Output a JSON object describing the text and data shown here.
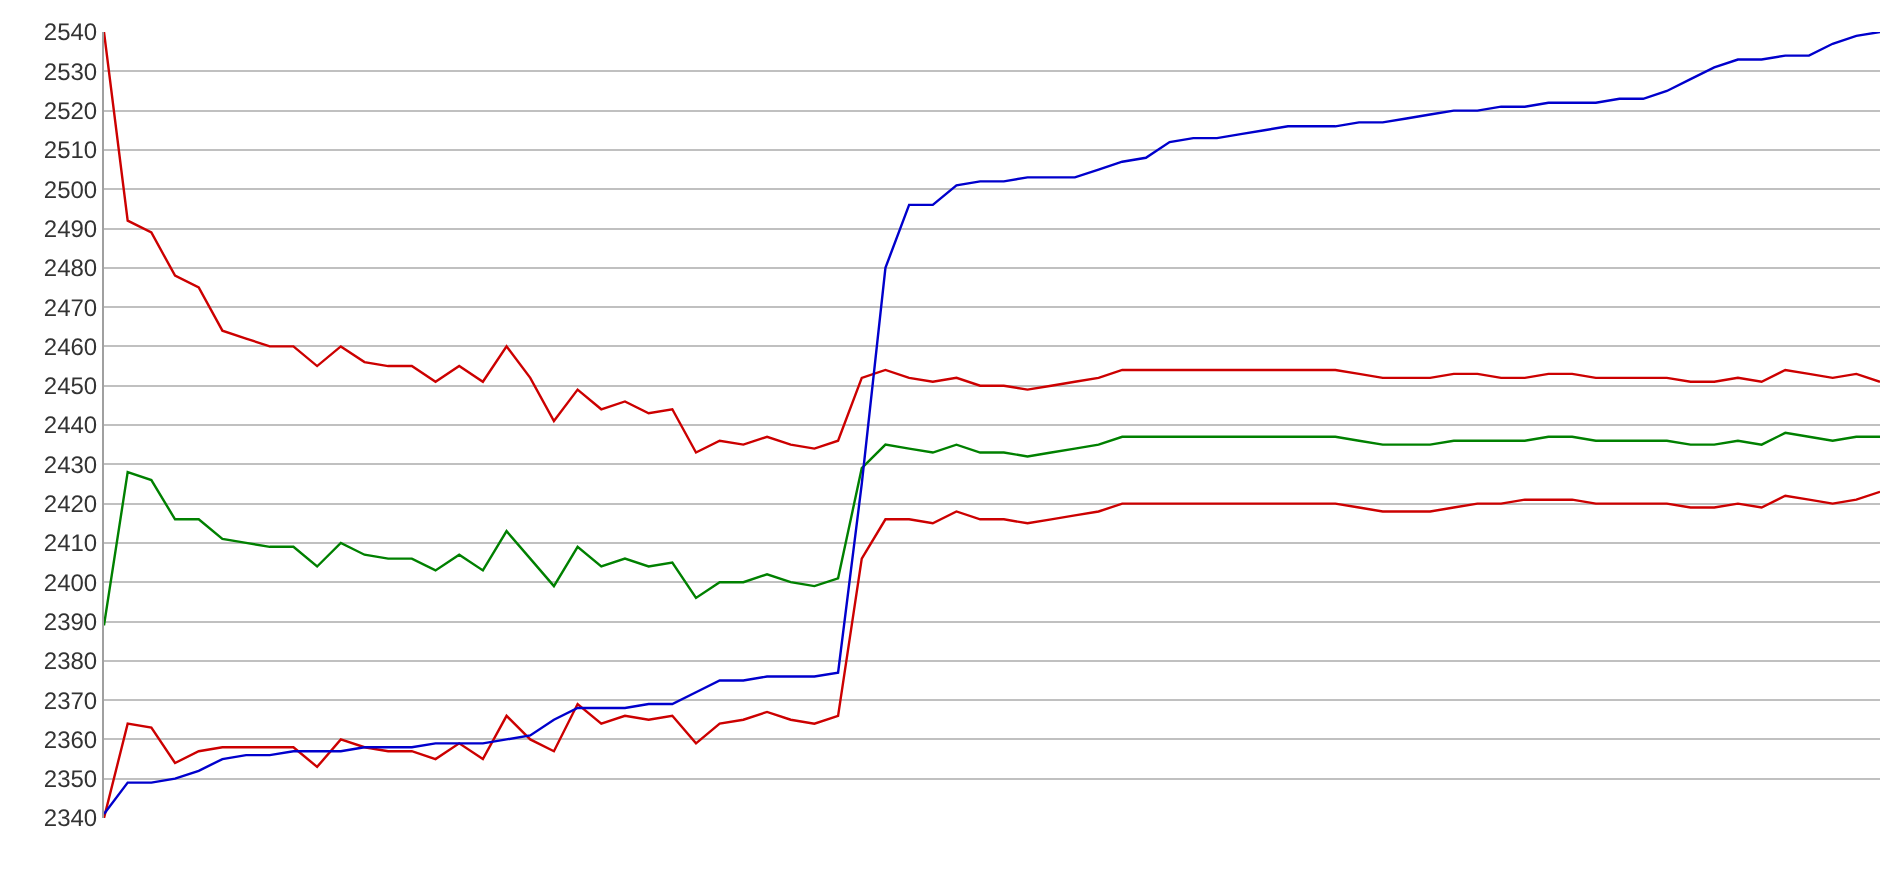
{
  "chart_data": {
    "type": "line",
    "categories": [
      null,
      null,
      null,
      null,
      null,
      null,
      null,
      null,
      null,
      null,
      null,
      null,
      null,
      null,
      null,
      null,
      null,
      null,
      null,
      null,
      null,
      null,
      null,
      null,
      null,
      null,
      null,
      null,
      null,
      null,
      null,
      null,
      null,
      null,
      null,
      null,
      null,
      null,
      null,
      null,
      null,
      null,
      null,
      null,
      null,
      null,
      null,
      null,
      null,
      null,
      null,
      null,
      null,
      null,
      null,
      null,
      null,
      null,
      null,
      null,
      null,
      null,
      null,
      null,
      null,
      null,
      null,
      null,
      null,
      null,
      null,
      null,
      null,
      null,
      null,
      null
    ],
    "series": [
      {
        "color": "#cc0000",
        "values": [
          2540,
          2492,
          2489,
          2478,
          2475,
          2464,
          2462,
          2460,
          2460,
          2455,
          2460,
          2456,
          2455,
          2455,
          2451,
          2455,
          2451,
          2460,
          2452,
          2441,
          2449,
          2444,
          2446,
          2443,
          2444,
          2433,
          2436,
          2435,
          2437,
          2435,
          2434,
          2436,
          2452,
          2454,
          2452,
          2451,
          2452,
          2450,
          2450,
          2449,
          2450,
          2451,
          2452,
          2454,
          2454,
          2454,
          2454,
          2454,
          2454,
          2454,
          2454,
          2454,
          2454,
          2453,
          2452,
          2452,
          2452,
          2453,
          2453,
          2452,
          2452,
          2453,
          2453,
          2452,
          2452,
          2452,
          2452,
          2451,
          2451,
          2452,
          2451,
          2454,
          2453,
          2452,
          2453,
          2451
        ]
      },
      {
        "color": "#008000",
        "values": [
          2389,
          2428,
          2426,
          2416,
          2416,
          2411,
          2410,
          2409,
          2409,
          2404,
          2410,
          2407,
          2406,
          2406,
          2403,
          2407,
          2403,
          2413,
          2406,
          2399,
          2409,
          2404,
          2406,
          2404,
          2405,
          2396,
          2400,
          2400,
          2402,
          2400,
          2399,
          2401,
          2429,
          2435,
          2434,
          2433,
          2435,
          2433,
          2433,
          2432,
          2433,
          2434,
          2435,
          2437,
          2437,
          2437,
          2437,
          2437,
          2437,
          2437,
          2437,
          2437,
          2437,
          2436,
          2435,
          2435,
          2435,
          2436,
          2436,
          2436,
          2436,
          2437,
          2437,
          2436,
          2436,
          2436,
          2436,
          2435,
          2435,
          2436,
          2435,
          2438,
          2437,
          2436,
          2437,
          2437
        ]
      },
      {
        "color": "#cc0000",
        "values": [
          2340,
          2364,
          2363,
          2354,
          2357,
          2358,
          2358,
          2358,
          2358,
          2353,
          2360,
          2358,
          2357,
          2357,
          2355,
          2359,
          2355,
          2366,
          2360,
          2357,
          2369,
          2364,
          2366,
          2365,
          2366,
          2359,
          2364,
          2365,
          2367,
          2365,
          2364,
          2366,
          2406,
          2416,
          2416,
          2415,
          2418,
          2416,
          2416,
          2415,
          2416,
          2417,
          2418,
          2420,
          2420,
          2420,
          2420,
          2420,
          2420,
          2420,
          2420,
          2420,
          2420,
          2419,
          2418,
          2418,
          2418,
          2419,
          2420,
          2420,
          2421,
          2421,
          2421,
          2420,
          2420,
          2420,
          2420,
          2419,
          2419,
          2420,
          2419,
          2422,
          2421,
          2420,
          2421,
          2423
        ]
      },
      {
        "color": "#0000cc",
        "values": [
          2341,
          2349,
          2349,
          2350,
          2352,
          2355,
          2356,
          2356,
          2357,
          2357,
          2357,
          2358,
          2358,
          2358,
          2359,
          2359,
          2359,
          2360,
          2361,
          2365,
          2368,
          2368,
          2368,
          2369,
          2369,
          2372,
          2375,
          2375,
          2376,
          2376,
          2376,
          2377,
          2425,
          2480,
          2496,
          2496,
          2501,
          2502,
          2502,
          2503,
          2503,
          2503,
          2505,
          2507,
          2508,
          2512,
          2513,
          2513,
          2514,
          2515,
          2516,
          2516,
          2516,
          2517,
          2517,
          2518,
          2519,
          2520,
          2520,
          2521,
          2521,
          2522,
          2522,
          2522,
          2523,
          2523,
          2525,
          2528,
          2531,
          2533,
          2533,
          2534,
          2534,
          2537,
          2539,
          2540
        ]
      }
    ],
    "ylim": [
      2340,
      2540
    ],
    "yticks": [
      2340,
      2350,
      2360,
      2370,
      2380,
      2390,
      2400,
      2410,
      2420,
      2430,
      2440,
      2450,
      2460,
      2470,
      2480,
      2490,
      2500,
      2510,
      2520,
      2530,
      2540
    ],
    "grid": "y",
    "marker": "none",
    "line_style": "solid",
    "tick_labels": "y"
  }
}
